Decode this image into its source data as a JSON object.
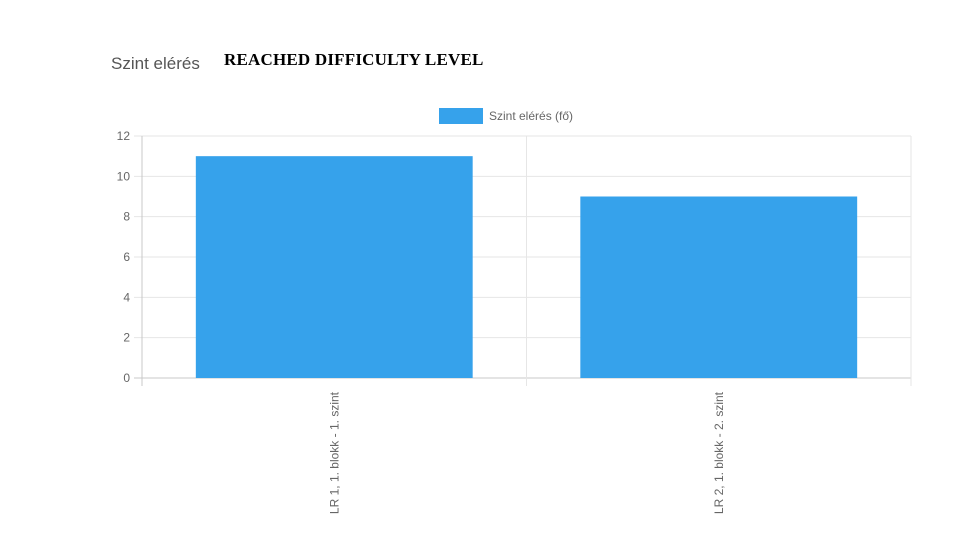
{
  "header": {
    "label": "Szint elérés",
    "title": "REACHED DIFFICULTY LEVEL"
  },
  "chart_data": {
    "type": "bar",
    "categories": [
      "LR 1, 1. blokk - 1. szint",
      "LR 2, 1. blokk - 2. szint"
    ],
    "series": [
      {
        "name": "Szint elérés (fő)",
        "values": [
          11,
          9
        ],
        "color": "#36a2eb"
      }
    ],
    "yticks": [
      "0",
      "2",
      "4",
      "6",
      "8",
      "10",
      "12"
    ],
    "ylim": [
      0,
      12
    ],
    "grid": true,
    "legend_position": "top-center",
    "title": "",
    "xlabel": "",
    "ylabel": ""
  }
}
